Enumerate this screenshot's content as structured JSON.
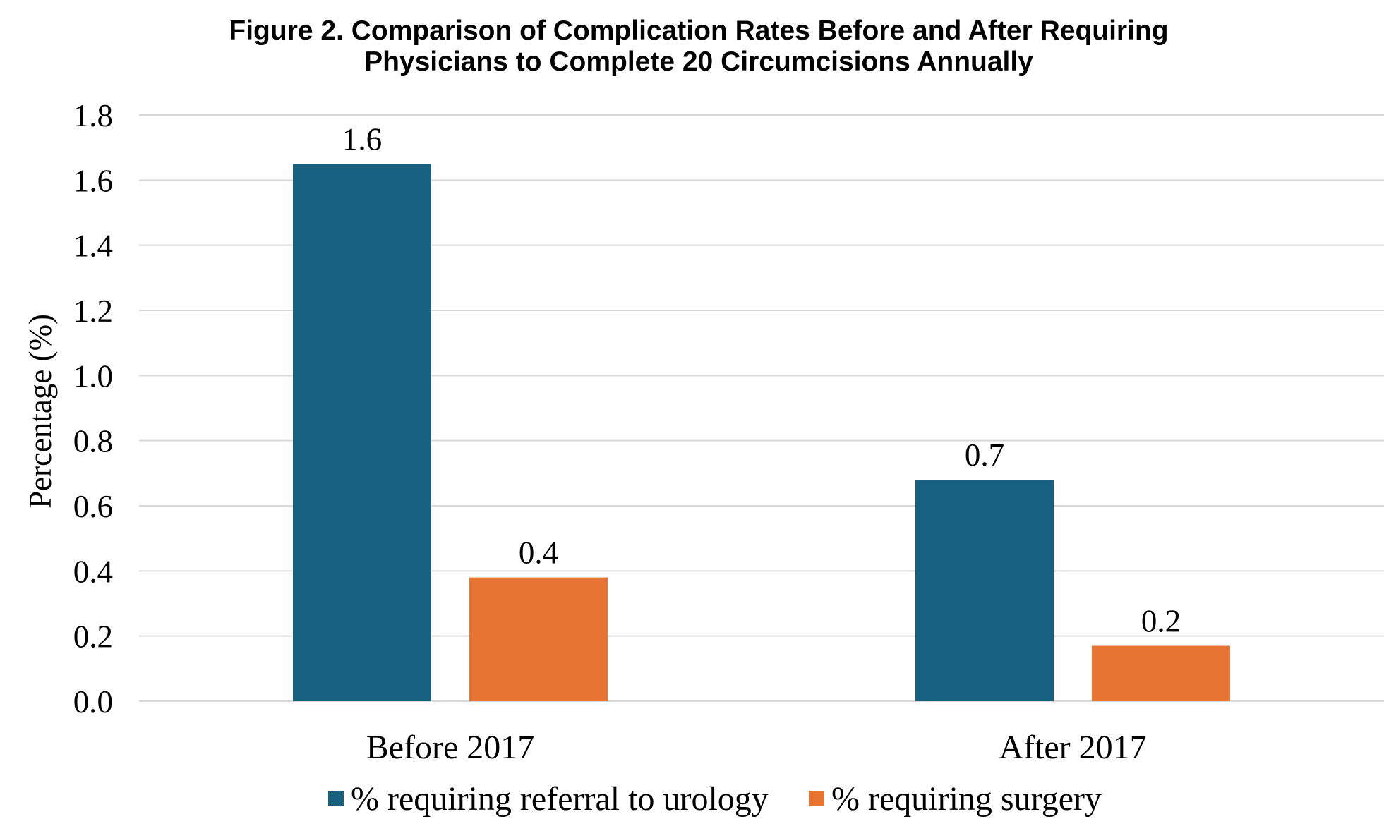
{
  "chart_data": {
    "type": "bar",
    "title_lines": [
      "Figure 2. Comparison of Complication Rates Before and After Requiring",
      "Physicians to Complete 20 Circumcisions Annually"
    ],
    "xlabel": "",
    "ylabel": "Percentage (%)",
    "ylim": [
      0,
      1.8
    ],
    "yticks": [
      0.0,
      0.2,
      0.4,
      0.6,
      0.8,
      1.0,
      1.2,
      1.4,
      1.6,
      1.8
    ],
    "ytick_labels": [
      "0.0",
      "0.2",
      "0.4",
      "0.6",
      "0.8",
      "1.0",
      "1.2",
      "1.4",
      "1.6",
      "1.8"
    ],
    "categories": [
      "Before 2017",
      "After 2017"
    ],
    "series": [
      {
        "name": "% requiring referral to urology",
        "color": "#17607f",
        "values": [
          1.65,
          0.68
        ],
        "data_labels": [
          "1.6",
          "0.7"
        ]
      },
      {
        "name": "% requiring surgery",
        "color": "#e87434",
        "values": [
          0.38,
          0.17
        ],
        "data_labels": [
          "0.4",
          "0.2"
        ]
      }
    ],
    "grid": true,
    "legend_position": "bottom"
  }
}
